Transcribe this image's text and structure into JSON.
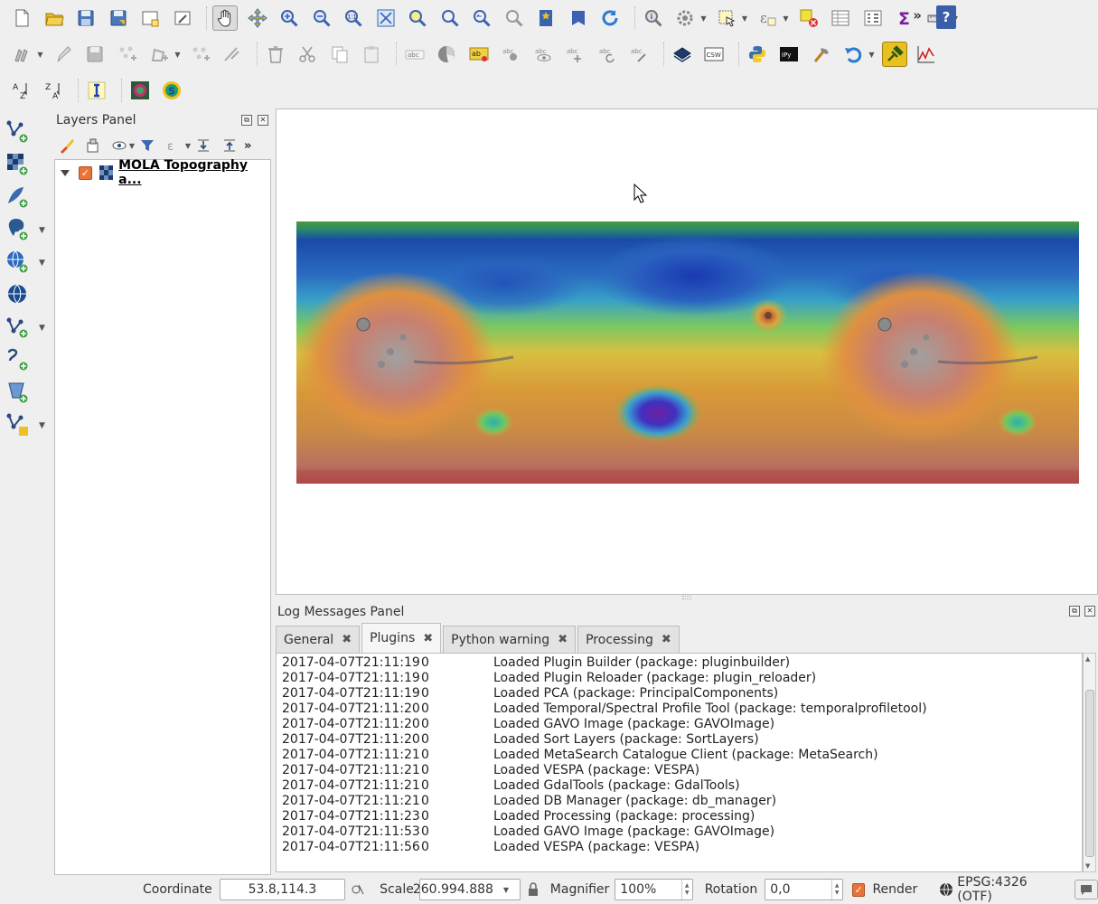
{
  "colors": {
    "background": "#efefef",
    "panel_white": "#ffffff",
    "checkbox_orange": "#e9743a",
    "help_blue": "#3a5fa8"
  },
  "toolbar_row1": [
    "new-project-icon",
    "open-project-icon",
    "save-project-icon",
    "save-as-icon",
    "new-print-layout-icon",
    "layout-manager-icon",
    "pan-icon",
    "pan-to-selection-icon",
    "zoom-in-icon",
    "zoom-out-icon",
    "zoom-native-icon",
    "zoom-full-icon",
    "zoom-to-selection-icon",
    "zoom-to-layer-icon",
    "zoom-last-icon",
    "zoom-next-icon",
    "new-bookmark-icon",
    "show-bookmarks-icon",
    "refresh-icon",
    "identify-icon",
    "run-action-icon",
    "select-features-icon",
    "select-by-expression-icon",
    "deselect-icon",
    "attribute-table-icon",
    "field-calculator-icon",
    "statistics-icon",
    "measure-icon",
    "help-icon"
  ],
  "toolbar_row2": [
    "current-edits-icon",
    "toggle-editing-icon",
    "save-edits-icon",
    "add-feature-icon",
    "vertex-tool-icon",
    "add-part-icon",
    "node-tool-icon",
    "delete-selected-icon",
    "cut-features-icon",
    "copy-features-icon",
    "paste-features-icon",
    "label-abc-icon",
    "pie-chart-icon",
    "label-highlight-icon",
    "pin-label-icon",
    "show-label-icon",
    "move-label-icon",
    "rotate-label-icon",
    "change-label-icon",
    "csw-dark-icon",
    "csw-icon",
    "python-console-icon",
    "ipython-icon",
    "processing-toolbox-icon",
    "undo-icon",
    "plugin-reloader-icon",
    "profile-tool-icon"
  ],
  "toolbar_row3": [
    "sort-az-icon",
    "sort-za-icon",
    "info-i-icon",
    "gavo-image-icon",
    "vespa-icon"
  ],
  "left_toolbar": [
    "new-shapefile-layer-icon",
    "add-raster-layer-icon",
    "new-spatialite-icon",
    "add-postgis-icon",
    "add-wms-icon",
    "add-wcs-icon",
    "add-wfs-icon",
    "add-delimited-text-icon",
    "add-virtual-layer-icon",
    "new-temporary-layer-icon"
  ],
  "layers_panel": {
    "title": "Layers Panel",
    "layer_name": "MOLA Topography a..."
  },
  "log_panel": {
    "title": "Log Messages Panel",
    "tabs": [
      "General",
      "Plugins",
      "Python warning",
      "Processing"
    ],
    "rows": [
      {
        "ts": "2017-04-07T21:11:19",
        "lvl": "0",
        "msg": "Loaded Plugin Builder (package: pluginbuilder)"
      },
      {
        "ts": "2017-04-07T21:11:19",
        "lvl": "0",
        "msg": "Loaded Plugin Reloader (package: plugin_reloader)"
      },
      {
        "ts": "2017-04-07T21:11:19",
        "lvl": "0",
        "msg": "Loaded PCA (package: PrincipalComponents)"
      },
      {
        "ts": "2017-04-07T21:11:20",
        "lvl": "0",
        "msg": "Loaded Temporal/Spectral Profile Tool (package: temporalprofiletool)"
      },
      {
        "ts": "2017-04-07T21:11:20",
        "lvl": "0",
        "msg": "Loaded GAVO Image (package: GAVOImage)"
      },
      {
        "ts": "2017-04-07T21:11:20",
        "lvl": "0",
        "msg": "Loaded Sort Layers (package: SortLayers)"
      },
      {
        "ts": "2017-04-07T21:11:21",
        "lvl": "0",
        "msg": "Loaded MetaSearch Catalogue Client (package: MetaSearch)"
      },
      {
        "ts": "2017-04-07T21:11:21",
        "lvl": "0",
        "msg": "Loaded VESPA (package: VESPA)"
      },
      {
        "ts": "2017-04-07T21:11:21",
        "lvl": "0",
        "msg": "Loaded GdalTools (package: GdalTools)"
      },
      {
        "ts": "2017-04-07T21:11:21",
        "lvl": "0",
        "msg": "Loaded DB Manager (package: db_manager)"
      },
      {
        "ts": "2017-04-07T21:11:23",
        "lvl": "0",
        "msg": "Loaded Processing (package: processing)"
      },
      {
        "ts": "2017-04-07T21:11:53",
        "lvl": "0",
        "msg": "Loaded GAVO Image (package: GAVOImage)"
      },
      {
        "ts": "2017-04-07T21:11:56",
        "lvl": "0",
        "msg": "Loaded VESPA (package: VESPA)"
      }
    ]
  },
  "status_bar": {
    "coordinate_label": "Coordinate",
    "coordinate_value": "53.8,114.3",
    "scale_label": "Scale",
    "scale_value": "260.994.888",
    "magnifier_label": "Magnifier",
    "magnifier_value": "100%",
    "rotation_label": "Rotation",
    "rotation_value": "0,0",
    "render_label": "Render",
    "crs_label": "EPSG:4326 (OTF)"
  }
}
